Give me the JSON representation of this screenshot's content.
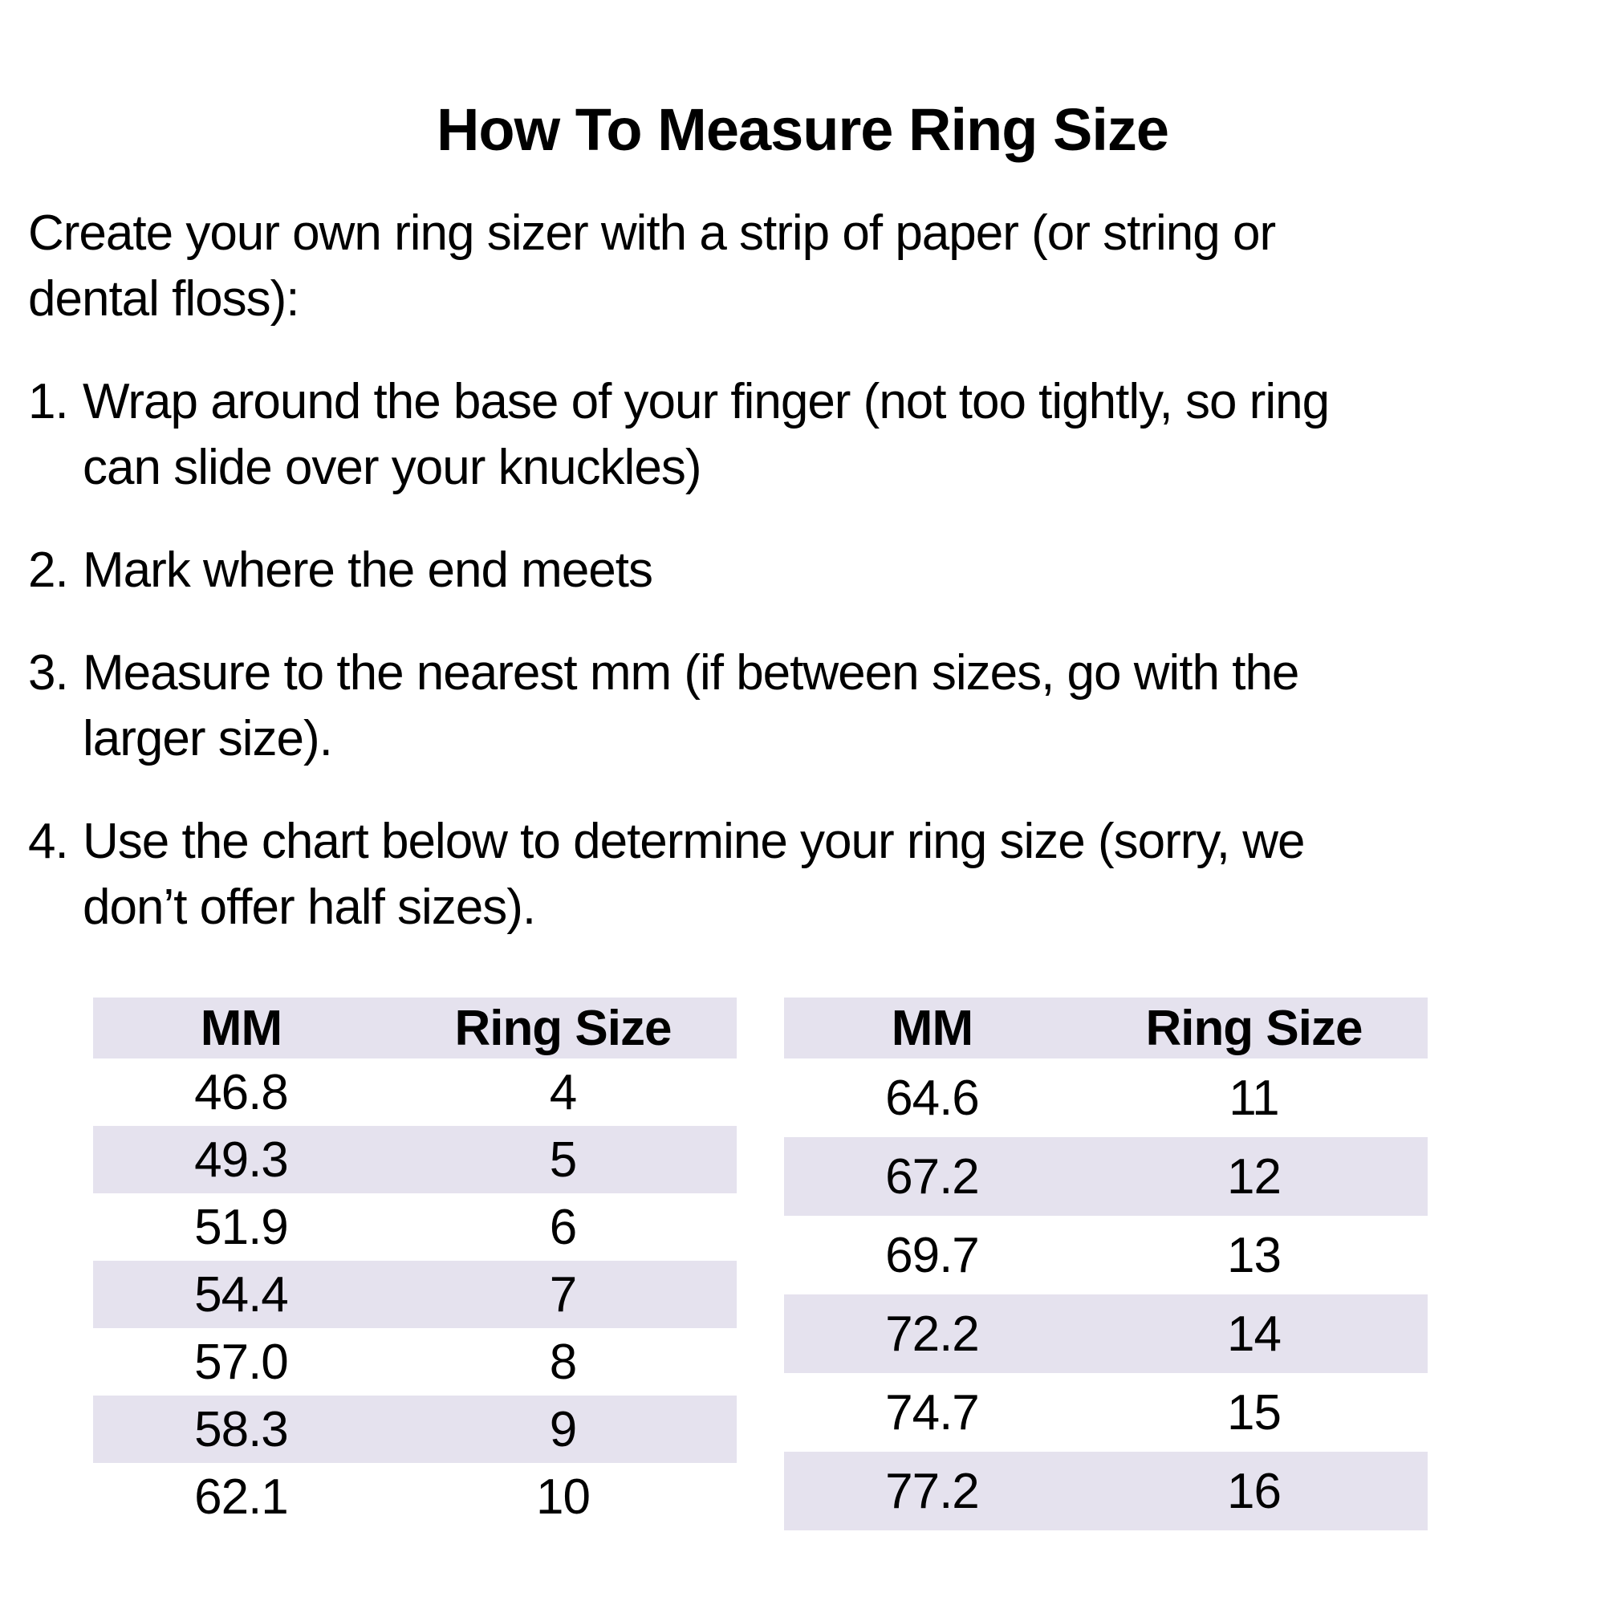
{
  "title": "How To Measure Ring Size",
  "intro": {
    "lines": [
      "Create your own ring sizer with a strip of paper (or string or",
      "dental floss):"
    ]
  },
  "steps": [
    {
      "num": "1.",
      "lines": [
        "Wrap around the base of your finger (not too tightly, so ring",
        "can slide over your knuckles)"
      ]
    },
    {
      "num": "2.",
      "lines": [
        "Mark where the end meets"
      ]
    },
    {
      "num": "3.",
      "lines": [
        "Measure to the nearest mm (if between sizes, go with the",
        "larger size)."
      ]
    },
    {
      "num": "4.",
      "lines": [
        "Use the chart below to determine your ring size (sorry, we",
        "don’t offer half sizes)."
      ]
    }
  ],
  "tables": {
    "columns": [
      "MM",
      "Ring Size"
    ],
    "left": {
      "rows": [
        {
          "mm": "46.8",
          "size": "4"
        },
        {
          "mm": "49.3",
          "size": "5"
        },
        {
          "mm": "51.9",
          "size": "6"
        },
        {
          "mm": "54.4",
          "size": "7"
        },
        {
          "mm": "57.0",
          "size": "8"
        },
        {
          "mm": "58.3",
          "size": "9"
        },
        {
          "mm": "62.1",
          "size": "10"
        }
      ]
    },
    "right": {
      "rows": [
        {
          "mm": "64.6",
          "size": "11"
        },
        {
          "mm": "67.2",
          "size": "12"
        },
        {
          "mm": "69.7",
          "size": "13"
        },
        {
          "mm": "72.2",
          "size": "14"
        },
        {
          "mm": "74.7",
          "size": "15"
        },
        {
          "mm": "77.2",
          "size": "16"
        }
      ]
    }
  },
  "colors": {
    "stripe": "#E5E2EE",
    "text": "#000000",
    "background": "#FFFFFF"
  }
}
